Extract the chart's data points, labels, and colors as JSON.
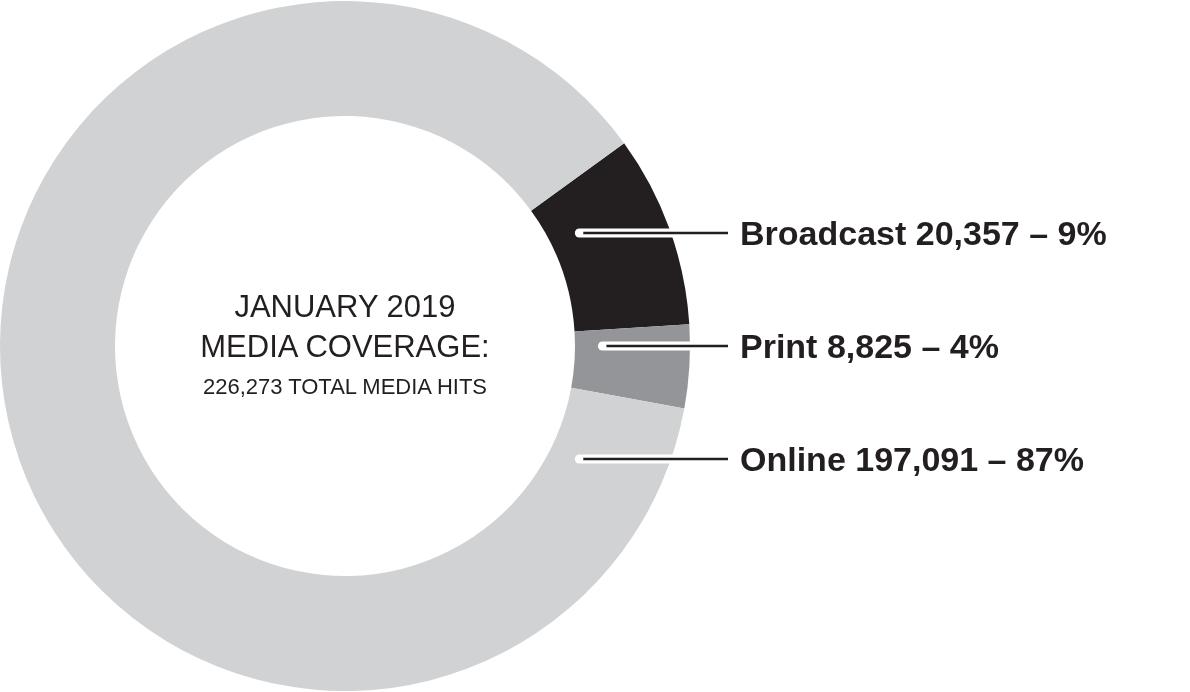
{
  "chart_data": {
    "type": "donut",
    "title": "JANUARY 2019 MEDIA COVERAGE:",
    "subtitle": "226,273 TOTAL MEDIA HITS",
    "categories": [
      "Broadcast",
      "Print",
      "Online"
    ],
    "values": [
      20357,
      8825,
      197091
    ],
    "value_labels": [
      "20,357 – 9%",
      "8,825 – 4%",
      "197,091 – 87%"
    ],
    "colors": [
      "#231f20",
      "#939598",
      "#d1d2d4"
    ],
    "legend": "right"
  }
}
